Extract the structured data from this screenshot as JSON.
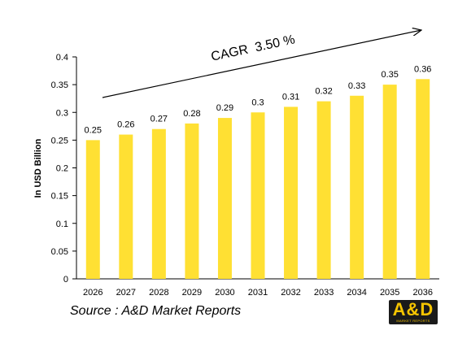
{
  "chart_data": {
    "type": "bar",
    "categories": [
      "2026",
      "2027",
      "2028",
      "2029",
      "2030",
      "2031",
      "2032",
      "2033",
      "2034",
      "2035",
      "2036"
    ],
    "values": [
      0.25,
      0.26,
      0.27,
      0.28,
      0.29,
      0.3,
      0.31,
      0.32,
      0.33,
      0.35,
      0.36
    ],
    "value_labels": [
      "0.25",
      "0.26",
      "0.27",
      "0.28",
      "0.29",
      "0.3",
      "0.31",
      "0.32",
      "0.33",
      "0.35",
      "0.36"
    ],
    "ylabel": "In USD Billion",
    "ylim": [
      0,
      0.4
    ],
    "yticks": [
      "0",
      "0.05",
      "0.1",
      "0.15",
      "0.2",
      "0.25",
      "0.3",
      "0.35",
      "0.4"
    ],
    "grid": false,
    "bar_color": "#FFE033",
    "annotation": "CAGR  3.50 %"
  },
  "source": "Source : A&D Market Reports",
  "logo": {
    "text": "A&D",
    "subtext": "MARKET REPORTS",
    "bg_color": "#1a1a1a",
    "fg_color": "#f5c400"
  }
}
